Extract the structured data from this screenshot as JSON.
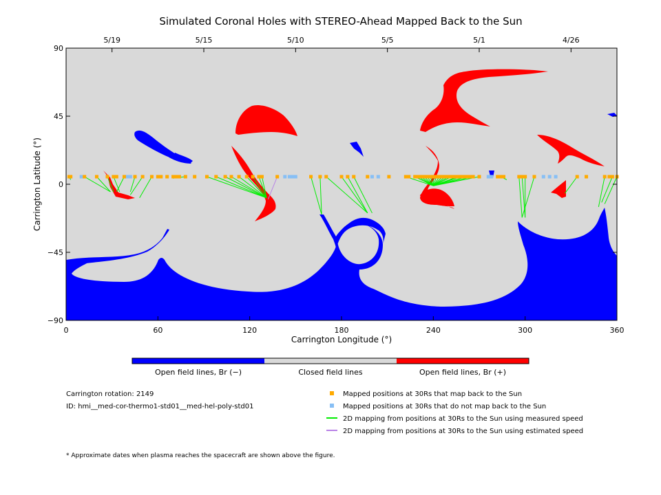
{
  "chart_data": {
    "type": "map",
    "title": "Simulated Coronal Holes with STEREO-Ahead Mapped Back to the Sun",
    "xlabel": "Carrington Longitude (°)",
    "ylabel": "Carrington Latitude (°)",
    "xlim": [
      0,
      360
    ],
    "ylim": [
      -90,
      90
    ],
    "x_ticks": [
      0,
      60,
      120,
      180,
      240,
      300,
      360
    ],
    "y_ticks": [
      -90,
      -45,
      0,
      45,
      90
    ],
    "date_ticks": [
      {
        "label": "5/19",
        "lon": 30
      },
      {
        "label": "5/15",
        "lon": 90
      },
      {
        "label": "5/10",
        "lon": 150
      },
      {
        "label": "5/5",
        "lon": 210
      },
      {
        "label": "5/1",
        "lon": 270
      },
      {
        "label": "4/26",
        "lon": 330
      }
    ],
    "colorbar": [
      {
        "label": "Open field lines, Br (−)",
        "color": "#0000ff"
      },
      {
        "label": "Closed field lines",
        "color": "#d9d9d9"
      },
      {
        "label": "Open field lines, Br (+)",
        "color": "#ff0000"
      }
    ],
    "info": {
      "rotation": "Carrington rotation: 2149",
      "id": "ID: hmi__med-cor-thermo1-std01__med-hel-poly-std01"
    },
    "legend": [
      {
        "label": "Mapped positions at 30Rs that map back to the Sun",
        "marker": "square",
        "color": "#ffaa00"
      },
      {
        "label": "Mapped positions at 30Rs that do not map back to the Sun",
        "marker": "square",
        "color": "#87bff5"
      },
      {
        "label": "2D mapping from positions at 30Rs to the Sun using measured speed",
        "marker": "line",
        "color": "#00ee00"
      },
      {
        "label": "2D mapping from positions at 30Rs to the Sun using estimated speed",
        "marker": "line",
        "color": "#b77fe6"
      }
    ],
    "footnote": "* Approximate dates when plasma reaches the spacecraft are shown above the figure.",
    "mapped_positions_lat": 5,
    "mapped_lons": [
      2,
      3,
      12,
      20,
      27,
      31,
      33,
      38,
      45,
      50,
      56,
      60,
      62,
      66,
      70,
      72,
      74,
      78,
      84,
      92,
      98,
      104,
      108,
      113,
      118,
      122,
      126,
      128,
      138,
      160,
      166,
      170,
      180,
      184,
      188,
      197,
      211,
      222,
      224,
      228,
      230,
      232,
      234,
      236,
      238,
      240,
      242,
      244,
      246,
      248,
      250,
      252,
      254,
      256,
      258,
      260,
      262,
      264,
      266,
      270,
      282,
      284,
      286,
      296,
      298,
      300,
      306,
      334,
      340,
      352,
      355,
      357,
      360
    ],
    "unmapped_lons": [
      10,
      11,
      40,
      42,
      45,
      143,
      146,
      148,
      150,
      200,
      204,
      276,
      278,
      312,
      316,
      320
    ],
    "mapping_lines": [
      [
        2,
        3
      ],
      [
        12,
        29
      ],
      [
        20,
        29
      ],
      [
        27,
        31
      ],
      [
        31,
        35
      ],
      [
        38,
        33
      ],
      [
        45,
        42
      ],
      [
        50,
        42
      ],
      [
        56,
        48
      ],
      [
        70,
        72
      ],
      [
        74,
        70
      ],
      [
        78,
        70
      ],
      [
        92,
        131
      ],
      [
        98,
        131
      ],
      [
        104,
        131
      ],
      [
        108,
        131
      ],
      [
        113,
        131
      ],
      [
        118,
        131
      ],
      [
        122,
        131
      ],
      [
        126,
        131
      ],
      [
        128,
        131
      ],
      [
        160,
        167
      ],
      [
        166,
        167
      ],
      [
        170,
        197
      ],
      [
        180,
        197
      ],
      [
        184,
        197
      ],
      [
        188,
        200
      ],
      [
        222,
        240
      ],
      [
        228,
        240
      ],
      [
        230,
        240
      ],
      [
        232,
        240
      ],
      [
        234,
        240
      ],
      [
        236,
        240
      ],
      [
        238,
        240
      ],
      [
        240,
        240
      ],
      [
        242,
        240
      ],
      [
        244,
        240
      ],
      [
        246,
        240
      ],
      [
        248,
        240
      ],
      [
        250,
        240
      ],
      [
        252,
        240
      ],
      [
        256,
        240
      ],
      [
        258,
        240
      ],
      [
        262,
        240
      ],
      [
        266,
        240
      ],
      [
        270,
        240
      ],
      [
        284,
        288
      ],
      [
        296,
        298
      ],
      [
        298,
        300
      ],
      [
        300,
        300
      ],
      [
        306,
        298
      ],
      [
        334,
        326
      ],
      [
        352,
        348
      ],
      [
        357,
        350
      ],
      [
        360,
        352
      ]
    ],
    "mapping_lats": [
      [
        5,
        3
      ],
      [
        5,
        -5
      ],
      [
        5,
        -5
      ],
      [
        5,
        -5
      ],
      [
        5,
        -5
      ],
      [
        5,
        -5
      ],
      [
        5,
        -5
      ],
      [
        5,
        -7
      ],
      [
        5,
        -9
      ],
      [
        5,
        4
      ],
      [
        5,
        4
      ],
      [
        5,
        4
      ],
      [
        5,
        -9
      ],
      [
        5,
        -9
      ],
      [
        5,
        -9
      ],
      [
        5,
        -9
      ],
      [
        5,
        -9
      ],
      [
        5,
        -9
      ],
      [
        5,
        -9
      ],
      [
        5,
        -9
      ],
      [
        5,
        -9
      ],
      [
        5,
        -20
      ],
      [
        5,
        -20
      ],
      [
        5,
        -19
      ],
      [
        5,
        -19
      ],
      [
        5,
        -19
      ],
      [
        5,
        -19
      ],
      [
        5,
        -1
      ],
      [
        5,
        -1
      ],
      [
        5,
        -1
      ],
      [
        5,
        -1
      ],
      [
        5,
        -1
      ],
      [
        5,
        -1
      ],
      [
        5,
        -1
      ],
      [
        5,
        -1
      ],
      [
        5,
        -1
      ],
      [
        5,
        -1
      ],
      [
        5,
        -1
      ],
      [
        5,
        -1
      ],
      [
        5,
        -1
      ],
      [
        5,
        -1
      ],
      [
        5,
        -1
      ],
      [
        5,
        -1
      ],
      [
        5,
        -1
      ],
      [
        5,
        -1
      ],
      [
        5,
        -1
      ],
      [
        5,
        3
      ],
      [
        5,
        -22
      ],
      [
        5,
        -22
      ],
      [
        5,
        -22
      ],
      [
        5,
        -22
      ],
      [
        5,
        -6
      ],
      [
        5,
        -15
      ],
      [
        5,
        -12
      ],
      [
        5,
        -13
      ]
    ],
    "estimated_lines": [
      [
        138,
        132,
        5,
        -10
      ]
    ]
  }
}
